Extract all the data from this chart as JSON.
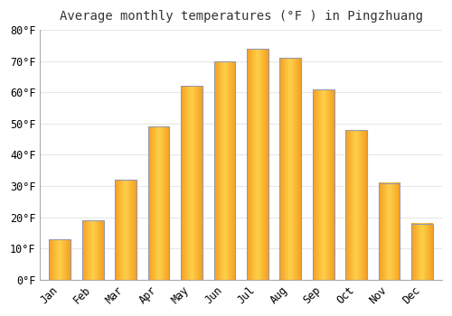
{
  "title": "Average monthly temperatures (°F ) in Pingzhuang",
  "months": [
    "Jan",
    "Feb",
    "Mar",
    "Apr",
    "May",
    "Jun",
    "Jul",
    "Aug",
    "Sep",
    "Oct",
    "Nov",
    "Dec"
  ],
  "values": [
    13,
    19,
    32,
    49,
    62,
    70,
    74,
    71,
    61,
    48,
    31,
    18
  ],
  "bar_color_light": "#FFD04A",
  "bar_color_dark": "#F5A020",
  "bar_edge_color": "#9999AA",
  "ylim": [
    0,
    80
  ],
  "yticks": [
    0,
    10,
    20,
    30,
    40,
    50,
    60,
    70,
    80
  ],
  "ylabel_suffix": "°F",
  "background_color": "#ffffff",
  "plot_bg_color": "#ffffff",
  "grid_color": "#e8e8e8",
  "title_fontsize": 10,
  "tick_fontsize": 8.5,
  "bar_width": 0.65
}
